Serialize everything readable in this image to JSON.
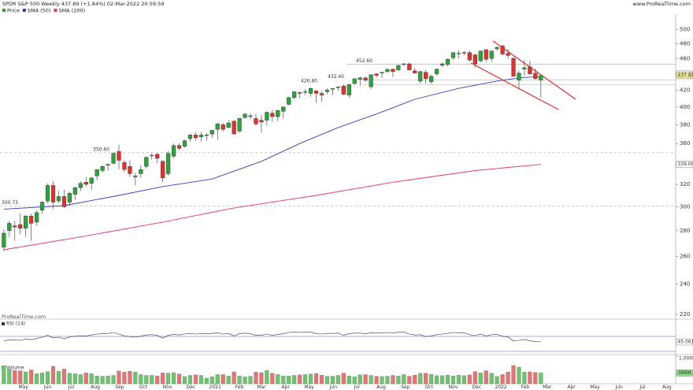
{
  "header": {
    "title": "SPDR S&P 500 Weekly 437.89 (+1.84%) 02-Mar-2022 20:59:59",
    "site": "www.ProRealTime.com",
    "watermark": "ProRealTime.com"
  },
  "chart_data": {
    "type": "candlestick",
    "name": "Price",
    "color_up": "#2ea33c",
    "color_down": "#e3302f",
    "ohlc": [
      [
        267,
        281,
        264,
        278
      ],
      [
        280,
        288,
        275,
        286
      ],
      [
        284,
        288,
        272,
        283
      ],
      [
        285,
        294,
        277,
        282
      ],
      [
        282,
        293,
        275,
        292
      ],
      [
        292,
        294,
        272,
        286
      ],
      [
        287,
        297,
        284,
        295
      ],
      [
        297,
        305,
        294,
        304
      ],
      [
        305,
        321,
        303,
        319
      ],
      [
        319,
        323,
        298,
        304
      ],
      [
        305,
        314,
        303,
        309
      ],
      [
        309,
        315,
        299,
        300
      ],
      [
        304,
        313,
        301,
        312
      ],
      [
        311,
        318,
        306,
        317
      ],
      [
        317,
        323,
        314,
        321
      ],
      [
        322,
        327,
        318,
        320
      ],
      [
        321,
        327,
        315,
        326
      ],
      [
        328,
        334,
        324,
        334
      ],
      [
        333,
        338,
        331,
        337
      ],
      [
        338,
        340,
        333,
        339
      ],
      [
        340,
        351,
        339,
        350
      ],
      [
        352,
        359,
        334,
        343
      ],
      [
        341,
        343,
        331,
        334
      ],
      [
        337,
        343,
        327,
        330
      ],
      [
        327,
        331,
        319,
        328
      ],
      [
        330,
        338,
        326,
        334
      ],
      [
        337,
        347,
        335,
        346
      ],
      [
        348,
        350,
        344,
        348
      ],
      [
        349,
        350,
        340,
        345
      ],
      [
        342,
        343,
        322,
        326
      ],
      [
        330,
        352,
        328,
        350
      ],
      [
        347,
        360,
        345,
        358
      ],
      [
        358,
        360,
        353,
        355
      ],
      [
        357,
        364,
        356,
        363
      ],
      [
        365,
        370,
        362,
        369
      ],
      [
        369,
        372,
        363,
        366
      ],
      [
        367,
        372,
        362,
        369
      ],
      [
        369,
        371,
        363,
        369
      ],
      [
        370,
        374,
        366,
        374
      ],
      [
        375,
        382,
        364,
        381
      ],
      [
        380,
        382,
        373,
        375
      ],
      [
        377,
        385,
        376,
        382
      ],
      [
        384,
        385,
        370,
        370
      ],
      [
        373,
        388,
        371,
        387
      ],
      [
        388,
        393,
        387,
        392
      ],
      [
        389,
        393,
        386,
        390
      ],
      [
        387,
        392,
        379,
        381
      ],
      [
        385,
        391,
        371,
        383
      ],
      [
        385,
        395,
        379,
        394
      ],
      [
        393,
        397,
        383,
        389
      ],
      [
        389,
        397,
        384,
        396
      ],
      [
        395,
        401,
        387,
        400
      ],
      [
        403,
        412,
        402,
        411
      ],
      [
        411,
        418,
        409,
        418
      ],
      [
        417,
        418,
        410,
        416
      ],
      [
        418,
        421,
        414,
        418
      ],
      [
        416,
        423,
        412,
        422
      ],
      [
        419,
        420,
        405,
        416
      ],
      [
        416,
        419,
        406,
        414
      ],
      [
        418,
        422,
        415,
        420
      ],
      [
        421,
        422,
        414,
        422
      ],
      [
        423,
        424,
        419,
        424
      ],
      [
        425,
        427,
        414,
        415
      ],
      [
        414,
        427,
        411,
        427
      ],
      [
        428,
        434,
        426,
        434
      ],
      [
        433,
        437,
        425,
        435
      ],
      [
        435,
        437,
        430,
        432
      ],
      [
        424,
        439,
        421,
        439
      ],
      [
        440,
        441,
        435,
        438
      ],
      [
        441,
        443,
        435,
        442
      ],
      [
        443,
        446,
        441,
        446
      ],
      [
        446,
        447,
        436,
        443
      ],
      [
        445,
        451,
        444,
        451
      ],
      [
        452,
        454,
        450,
        453
      ],
      [
        453,
        455,
        445,
        445
      ],
      [
        444,
        448,
        441,
        441
      ],
      [
        431,
        444,
        428,
        443
      ],
      [
        442,
        445,
        428,
        434
      ],
      [
        430,
        439,
        428,
        437
      ],
      [
        440,
        447,
        438,
        446
      ],
      [
        451,
        455,
        449,
        453
      ],
      [
        452,
        460,
        450,
        459
      ],
      [
        461,
        468,
        458,
        468
      ],
      [
        467,
        471,
        460,
        467
      ],
      [
        467,
        470,
        465,
        468
      ],
      [
        468,
        471,
        456,
        458
      ],
      [
        465,
        466,
        448,
        453
      ],
      [
        457,
        471,
        455,
        470
      ],
      [
        472,
        472,
        455,
        459
      ],
      [
        460,
        471,
        455,
        470
      ],
      [
        473,
        477,
        470,
        475
      ],
      [
        477,
        479,
        464,
        466
      ],
      [
        467,
        473,
        460,
        464
      ],
      [
        460,
        463,
        437,
        437
      ],
      [
        432,
        444,
        421,
        441
      ],
      [
        446,
        458,
        438,
        448
      ],
      [
        449,
        457,
        439,
        440
      ],
      [
        441,
        447,
        433,
        434
      ],
      [
        432,
        438,
        411,
        437.89
      ]
    ],
    "log_scale": true,
    "ylim": [
      217,
      518
    ],
    "yticks": [
      220,
      240,
      260,
      280,
      300,
      320,
      340,
      360,
      380,
      400,
      420,
      440,
      460,
      480,
      500
    ],
    "xlim": [
      -0.7,
      122.6
    ],
    "xticks": [
      {
        "value": 3.57,
        "label": "May"
      },
      {
        "value": 8,
        "label": "Jun"
      },
      {
        "value": 12.29,
        "label": "Jul"
      },
      {
        "value": 16.71,
        "label": "Aug"
      },
      {
        "value": 21.14,
        "label": "Sep"
      },
      {
        "value": 25.43,
        "label": "Oct"
      },
      {
        "value": 29.86,
        "label": "Nov"
      },
      {
        "value": 34.14,
        "label": "Dec"
      },
      {
        "value": 38.57,
        "label": "2021"
      },
      {
        "value": 43,
        "label": "Feb"
      },
      {
        "value": 47,
        "label": "Mar"
      },
      {
        "value": 51.43,
        "label": "Apr"
      },
      {
        "value": 55.71,
        "label": "May"
      },
      {
        "value": 60.14,
        "label": "Jun"
      },
      {
        "value": 64.43,
        "label": "Jul"
      },
      {
        "value": 68.86,
        "label": "Aug"
      },
      {
        "value": 73.29,
        "label": "Sep"
      },
      {
        "value": 77.57,
        "label": "Oct"
      },
      {
        "value": 82,
        "label": "Nov"
      },
      {
        "value": 86.29,
        "label": "Dec"
      },
      {
        "value": 90.71,
        "label": "2022"
      },
      {
        "value": 95.14,
        "label": "Feb"
      },
      {
        "value": 99.14,
        "label": "Mar"
      },
      {
        "value": 103.57,
        "label": "Apr"
      },
      {
        "value": 107.86,
        "label": "May"
      },
      {
        "value": 112.29,
        "label": "Jun"
      },
      {
        "value": 116.57,
        "label": "Jul"
      },
      {
        "value": 121,
        "label": "Aug"
      }
    ],
    "series": [
      {
        "name": "SMA (50)",
        "color": "#3a3ac8",
        "x": [
          0,
          11,
          21,
          29,
          38,
          47,
          54,
          61,
          68,
          75,
          83,
          90,
          94,
          98
        ],
        "values": [
          298,
          301,
          310,
          318,
          325,
          342,
          360,
          377,
          392,
          409,
          422,
          431,
          435,
          437
        ]
      },
      {
        "name": "SMA (200)",
        "color": "#e8356c",
        "x": [
          0,
          14,
          29,
          42,
          57,
          71,
          86,
          98
        ],
        "values": [
          265,
          275,
          287,
          299,
          310,
          322,
          333,
          339
        ]
      }
    ],
    "levels": [
      300.73,
      {
        "value": 350.6,
        "label": "350.60"
      },
      {
        "value": 426.8,
        "label": "426.80"
      },
      {
        "value": 432.4,
        "label": "432.40"
      },
      {
        "value": 452.6,
        "label": "452.60"
      }
    ],
    "price_markers": [
      {
        "value": 440,
        "label": "440.00",
        "color": "#ffffff"
      },
      {
        "value": 437.89,
        "label": "437.89",
        "color": "#f3e79a"
      },
      {
        "value": 339,
        "label": "339.00",
        "color": "#ffffff"
      }
    ],
    "rsi": {
      "name": "RSI (14)",
      "color": "#333333",
      "ylim": [
        0,
        100
      ],
      "values": [
        48,
        52,
        51,
        50,
        54,
        52,
        56,
        60,
        66,
        58,
        60,
        55,
        61,
        63,
        65,
        64,
        67,
        70,
        71,
        72,
        75,
        70,
        64,
        62,
        60,
        63,
        67,
        68,
        66,
        57,
        66,
        69,
        67,
        70,
        72,
        70,
        71,
        71,
        72,
        74,
        70,
        72,
        64,
        71,
        73,
        71,
        66,
        66,
        70,
        66,
        69,
        71,
        75,
        77,
        75,
        76,
        76,
        71,
        70,
        72,
        72,
        73,
        66,
        71,
        73,
        73,
        71,
        74,
        73,
        74,
        75,
        73,
        76,
        76,
        70,
        67,
        68,
        62,
        64,
        68,
        70,
        72,
        75,
        74,
        74,
        68,
        65,
        70,
        64,
        68,
        69,
        63,
        61,
        48,
        50,
        53,
        49,
        46,
        45.061
      ]
    },
    "volume": {
      "name": "Volume",
      "ylim": [
        0,
        1000
      ],
      "yticks": [
        {
          "value": 1000,
          "label": "1,000M"
        }
      ],
      "last_label": "389M",
      "values": [
        650,
        520,
        480,
        470,
        430,
        500,
        360,
        390,
        440,
        630,
        450,
        530,
        380,
        360,
        330,
        390,
        360,
        280,
        270,
        280,
        300,
        460,
        420,
        450,
        420,
        330,
        300,
        300,
        280,
        390,
        380,
        400,
        350,
        260,
        300,
        320,
        300,
        200,
        250,
        330,
        330,
        280,
        430,
        280,
        250,
        270,
        420,
        400,
        480,
        380,
        330,
        280,
        280,
        300,
        320,
        330,
        350,
        370,
        310,
        270,
        270,
        300,
        380,
        280,
        250,
        320,
        330,
        300,
        270,
        260,
        270,
        300,
        280,
        330,
        270,
        310,
        380,
        380,
        340,
        290,
        290,
        310,
        280,
        310,
        290,
        320,
        440,
        390,
        470,
        380,
        260,
        330,
        420,
        660,
        600,
        420,
        430,
        410,
        389
      ]
    }
  }
}
